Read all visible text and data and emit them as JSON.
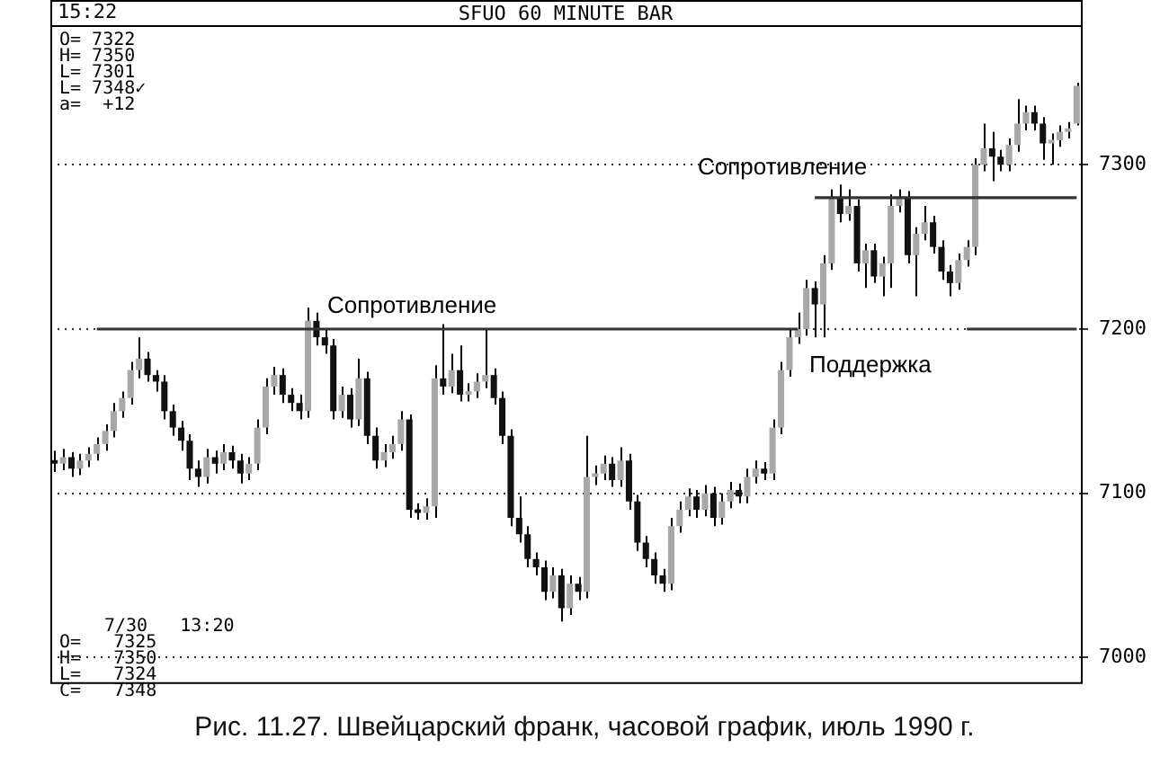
{
  "chart_data": {
    "type": "candlestick",
    "title": "SFUO 60 MINUTE BAR",
    "categories": [
      null,
      null,
      null,
      null,
      null,
      null,
      null,
      null,
      null,
      null,
      null,
      null,
      null,
      null,
      null,
      null,
      null,
      null,
      null,
      null,
      null,
      null,
      null,
      null,
      null,
      null,
      null,
      null,
      null,
      null,
      null,
      null,
      null,
      null,
      null,
      null,
      null,
      null,
      null,
      null,
      null,
      null,
      null,
      null,
      null,
      null,
      null,
      null,
      null,
      null,
      null,
      null,
      null,
      null,
      null,
      null,
      null,
      null,
      null,
      null,
      null,
      null,
      null,
      null,
      null,
      null,
      null,
      null,
      null,
      null,
      null,
      null,
      null,
      null,
      null,
      null,
      null,
      null,
      null,
      null,
      null,
      null,
      null,
      null,
      null,
      null,
      null,
      null,
      null,
      null,
      null,
      null,
      null,
      null,
      null,
      null,
      null,
      null,
      null,
      null,
      null,
      null,
      null,
      null,
      null,
      null,
      null,
      null,
      null,
      null,
      null,
      null,
      null,
      null,
      null,
      null,
      null,
      null,
      null,
      null,
      null,
      null
    ],
    "ohlc": [
      [
        7120,
        7126,
        7113,
        7118
      ],
      [
        7118,
        7127,
        7114,
        7122
      ],
      [
        7122,
        7125,
        7110,
        7115
      ],
      [
        7115,
        7124,
        7111,
        7120
      ],
      [
        7120,
        7128,
        7116,
        7124
      ],
      [
        7124,
        7134,
        7120,
        7130
      ],
      [
        7130,
        7142,
        7126,
        7138
      ],
      [
        7138,
        7155,
        7134,
        7150
      ],
      [
        7150,
        7162,
        7146,
        7158
      ],
      [
        7158,
        7180,
        7154,
        7175
      ],
      [
        7175,
        7195,
        7170,
        7182
      ],
      [
        7182,
        7186,
        7168,
        7172
      ],
      [
        7172,
        7175,
        7162,
        7168
      ],
      [
        7168,
        7172,
        7145,
        7150
      ],
      [
        7150,
        7154,
        7135,
        7140
      ],
      [
        7140,
        7144,
        7126,
        7132
      ],
      [
        7132,
        7136,
        7108,
        7115
      ],
      [
        7115,
        7120,
        7104,
        7110
      ],
      [
        7110,
        7127,
        7106,
        7122
      ],
      [
        7122,
        7126,
        7112,
        7118
      ],
      [
        7118,
        7130,
        7114,
        7125
      ],
      [
        7125,
        7129,
        7115,
        7120
      ],
      [
        7120,
        7124,
        7106,
        7112
      ],
      [
        7112,
        7122,
        7108,
        7118
      ],
      [
        7118,
        7145,
        7114,
        7140
      ],
      [
        7140,
        7170,
        7136,
        7165
      ],
      [
        7165,
        7177,
        7160,
        7172
      ],
      [
        7172,
        7176,
        7155,
        7160
      ],
      [
        7160,
        7164,
        7150,
        7155
      ],
      [
        7155,
        7160,
        7145,
        7150
      ],
      [
        7150,
        7213,
        7146,
        7205
      ],
      [
        7205,
        7210,
        7190,
        7195
      ],
      [
        7195,
        7200,
        7185,
        7190
      ],
      [
        7190,
        7194,
        7145,
        7150
      ],
      [
        7150,
        7165,
        7146,
        7160
      ],
      [
        7160,
        7164,
        7140,
        7145
      ],
      [
        7145,
        7182,
        7141,
        7170
      ],
      [
        7170,
        7174,
        7130,
        7135
      ],
      [
        7135,
        7140,
        7115,
        7120
      ],
      [
        7120,
        7130,
        7116,
        7125
      ],
      [
        7125,
        7135,
        7121,
        7130
      ],
      [
        7130,
        7150,
        7126,
        7145
      ],
      [
        7145,
        7148,
        7085,
        7090
      ],
      [
        7090,
        7094,
        7084,
        7088
      ],
      [
        7088,
        7097,
        7084,
        7092
      ],
      [
        7092,
        7178,
        7085,
        7170
      ],
      [
        7170,
        7203,
        7160,
        7165
      ],
      [
        7165,
        7185,
        7161,
        7175
      ],
      [
        7175,
        7190,
        7156,
        7160
      ],
      [
        7160,
        7167,
        7156,
        7162
      ],
      [
        7162,
        7173,
        7158,
        7168
      ],
      [
        7168,
        7200,
        7164,
        7172
      ],
      [
        7172,
        7176,
        7154,
        7158
      ],
      [
        7158,
        7162,
        7130,
        7135
      ],
      [
        7135,
        7139,
        7080,
        7085
      ],
      [
        7085,
        7098,
        7070,
        7075
      ],
      [
        7075,
        7080,
        7055,
        7060
      ],
      [
        7060,
        7064,
        7050,
        7055
      ],
      [
        7055,
        7059,
        7035,
        7040
      ],
      [
        7040,
        7055,
        7036,
        7050
      ],
      [
        7050,
        7054,
        7022,
        7030
      ],
      [
        7030,
        7050,
        7026,
        7045
      ],
      [
        7045,
        7049,
        7035,
        7040
      ],
      [
        7040,
        7135,
        7036,
        7110
      ],
      [
        7110,
        7117,
        7105,
        7112
      ],
      [
        7112,
        7123,
        7108,
        7118
      ],
      [
        7118,
        7122,
        7104,
        7108
      ],
      [
        7108,
        7128,
        7104,
        7120
      ],
      [
        7120,
        7124,
        7090,
        7095
      ],
      [
        7095,
        7099,
        7065,
        7070
      ],
      [
        7070,
        7074,
        7055,
        7060
      ],
      [
        7060,
        7064,
        7045,
        7050
      ],
      [
        7050,
        7054,
        7040,
        7045
      ],
      [
        7045,
        7085,
        7041,
        7080
      ],
      [
        7080,
        7095,
        7076,
        7090
      ],
      [
        7090,
        7103,
        7086,
        7098
      ],
      [
        7098,
        7102,
        7085,
        7090
      ],
      [
        7090,
        7105,
        7086,
        7100
      ],
      [
        7100,
        7104,
        7080,
        7085
      ],
      [
        7085,
        7100,
        7081,
        7095
      ],
      [
        7095,
        7107,
        7091,
        7102
      ],
      [
        7102,
        7106,
        7094,
        7098
      ],
      [
        7098,
        7115,
        7094,
        7110
      ],
      [
        7110,
        7120,
        7106,
        7115
      ],
      [
        7115,
        7119,
        7108,
        7112
      ],
      [
        7112,
        7145,
        7108,
        7140
      ],
      [
        7140,
        7180,
        7136,
        7175
      ],
      [
        7175,
        7200,
        7171,
        7195
      ],
      [
        7195,
        7210,
        7191,
        7200
      ],
      [
        7200,
        7230,
        7196,
        7225
      ],
      [
        7225,
        7229,
        7195,
        7215
      ],
      [
        7215,
        7245,
        7195,
        7240
      ],
      [
        7240,
        7285,
        7236,
        7280
      ],
      [
        7280,
        7288,
        7265,
        7270
      ],
      [
        7270,
        7285,
        7266,
        7275
      ],
      [
        7275,
        7279,
        7235,
        7240
      ],
      [
        7240,
        7252,
        7225,
        7248
      ],
      [
        7248,
        7252,
        7228,
        7232
      ],
      [
        7232,
        7244,
        7220,
        7240
      ],
      [
        7240,
        7282,
        7225,
        7275
      ],
      [
        7275,
        7285,
        7271,
        7280
      ],
      [
        7280,
        7284,
        7240,
        7245
      ],
      [
        7245,
        7262,
        7220,
        7258
      ],
      [
        7258,
        7275,
        7254,
        7265
      ],
      [
        7265,
        7269,
        7246,
        7250
      ],
      [
        7250,
        7254,
        7230,
        7235
      ],
      [
        7235,
        7239,
        7220,
        7228
      ],
      [
        7228,
        7246,
        7224,
        7242
      ],
      [
        7242,
        7254,
        7238,
        7250
      ],
      [
        7250,
        7304,
        7245,
        7300
      ],
      [
        7300,
        7325,
        7296,
        7310
      ],
      [
        7310,
        7320,
        7290,
        7305
      ],
      [
        7305,
        7309,
        7296,
        7300
      ],
      [
        7300,
        7316,
        7296,
        7312
      ],
      [
        7312,
        7340,
        7308,
        7325
      ],
      [
        7325,
        7336,
        7321,
        7332
      ],
      [
        7332,
        7336,
        7321,
        7325
      ],
      [
        7325,
        7329,
        7303,
        7313
      ],
      [
        7313,
        7319,
        7300,
        7315
      ],
      [
        7315,
        7324,
        7311,
        7320
      ],
      [
        7320,
        7326,
        7316,
        7322
      ],
      [
        7325,
        7350,
        7324,
        7348
      ]
    ],
    "series": [
      {
        "type": "line",
        "color": "#333333",
        "values": [
          null,
          null,
          null,
          null,
          null,
          7200,
          null,
          null,
          null,
          null,
          null,
          null,
          null,
          null,
          null,
          null,
          null,
          null,
          null,
          null,
          null,
          null,
          null,
          null,
          null,
          null,
          null,
          null,
          null,
          null,
          null,
          null,
          null,
          null,
          null,
          null,
          null,
          null,
          null,
          null,
          null,
          null,
          null,
          null,
          null,
          null,
          null,
          null,
          null,
          null,
          null,
          null,
          null,
          null,
          null,
          null,
          null,
          null,
          null,
          null,
          null,
          null,
          null,
          null,
          null,
          null,
          null,
          null,
          null,
          null,
          null,
          null,
          null,
          null,
          null,
          null,
          null,
          null,
          null,
          null,
          null,
          null,
          null,
          null,
          null,
          null,
          null,
          null,
          7200,
          null,
          null,
          null,
          null,
          null,
          null,
          null,
          null,
          null,
          null,
          null,
          null,
          null,
          null,
          null,
          null,
          null,
          null,
          null,
          null,
          null,
          null,
          null,
          null,
          null,
          null,
          null,
          null,
          null,
          null,
          null,
          null,
          null
        ]
      },
      {
        "type": "line",
        "color": "#333333",
        "values": [
          null,
          null,
          null,
          null,
          null,
          null,
          null,
          null,
          null,
          null,
          null,
          null,
          null,
          null,
          null,
          null,
          null,
          null,
          null,
          null,
          null,
          null,
          null,
          null,
          null,
          null,
          null,
          null,
          null,
          null,
          null,
          null,
          null,
          null,
          null,
          null,
          null,
          null,
          null,
          null,
          null,
          null,
          null,
          null,
          null,
          null,
          null,
          null,
          null,
          null,
          null,
          null,
          null,
          null,
          null,
          null,
          null,
          null,
          null,
          null,
          null,
          null,
          null,
          null,
          null,
          null,
          null,
          null,
          null,
          null,
          null,
          null,
          null,
          null,
          null,
          null,
          null,
          null,
          null,
          null,
          null,
          null,
          null,
          null,
          null,
          null,
          null,
          null,
          null,
          null,
          7280,
          null,
          null,
          null,
          null,
          null,
          null,
          null,
          null,
          null,
          null,
          null,
          null,
          null,
          null,
          null,
          null,
          null,
          null,
          null,
          null,
          null,
          null,
          null,
          null,
          null,
          null,
          null,
          null,
          null,
          null,
          7280
        ]
      },
      {
        "type": "line",
        "color": "#333333",
        "values": [
          null,
          null,
          null,
          null,
          null,
          null,
          null,
          null,
          null,
          null,
          null,
          null,
          null,
          null,
          null,
          null,
          null,
          null,
          null,
          null,
          null,
          null,
          null,
          null,
          null,
          null,
          null,
          null,
          null,
          null,
          null,
          null,
          null,
          null,
          null,
          null,
          null,
          null,
          null,
          null,
          null,
          null,
          null,
          null,
          null,
          null,
          null,
          null,
          null,
          null,
          null,
          null,
          null,
          null,
          null,
          null,
          null,
          null,
          null,
          null,
          null,
          null,
          null,
          null,
          null,
          null,
          null,
          null,
          null,
          null,
          null,
          null,
          null,
          null,
          null,
          null,
          null,
          null,
          null,
          null,
          null,
          null,
          null,
          null,
          null,
          null,
          null,
          null,
          null,
          null,
          null,
          null,
          null,
          null,
          null,
          null,
          null,
          null,
          null,
          null,
          null,
          null,
          null,
          null,
          null,
          null,
          null,
          null,
          7200,
          null,
          null,
          null,
          null,
          null,
          null,
          null,
          null,
          null,
          null,
          null,
          null,
          7200
        ]
      }
    ],
    "ylim": [
      6985,
      7385
    ],
    "yticks": [
      7000,
      7100,
      7200,
      7300
    ],
    "grid": "y",
    "annotations": [
      "15:22",
      "O= 7322",
      "H= 7350",
      "L= 7301",
      "L= 7348✓",
      "a=  +12",
      "7/30   13:20",
      "O=   7325",
      "H=   7350",
      "L=   7324",
      "C=   7348",
      {
        "text": "Сопротивление",
        "y": 7200
      },
      "Сопротивление",
      "Поддержка",
      "Рис. 11.27. Швейцарский франк, часовой график, июль 1990 г."
    ]
  }
}
